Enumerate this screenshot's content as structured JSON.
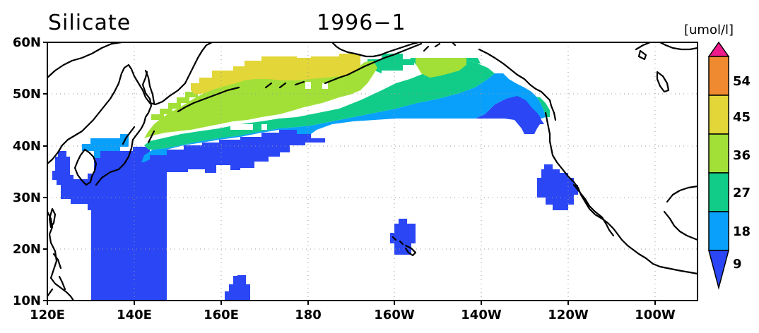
{
  "title": {
    "variable": "Silicate",
    "date": "1996−1"
  },
  "units": "[umol/l]",
  "axes": {
    "lon_labels": [
      "120E",
      "140E",
      "160E",
      "180",
      "160W",
      "140W",
      "120W",
      "100W"
    ],
    "lat_labels": [
      "10N",
      "20N",
      "30N",
      "40N",
      "50N",
      "60N"
    ],
    "lon_range": [
      120,
      270
    ],
    "lat_range": [
      10,
      60
    ],
    "grid": true
  },
  "colorbar": {
    "labels": [
      "9",
      "18",
      "27",
      "36",
      "45",
      "54"
    ],
    "levels": [
      9,
      18,
      27,
      36,
      45,
      54
    ],
    "colors": [
      "#2a46f5",
      "#08a0fa",
      "#10cc88",
      "#a2e038",
      "#e2d638",
      "#f08a30",
      "#ee1a8c"
    ],
    "extends": "both"
  },
  "chart_data": {
    "type": "heatmap",
    "title": "Silicate 1996−1",
    "units": "[umol/l]",
    "xlabel": "",
    "ylabel": "",
    "lon_range": [
      120,
      270
    ],
    "lat_range": [
      10,
      60
    ],
    "levels": [
      9,
      18,
      27,
      36,
      45,
      54
    ],
    "colors": [
      "#2a46f5",
      "#08a0fa",
      "#10cc88",
      "#a2e038",
      "#e2d638",
      "#f08a30",
      "#ee1a8c"
    ],
    "regions": [
      {
        "class": "<9",
        "color": "#2a46f5",
        "lon": [
          130,
          137
        ],
        "lat": [
          10,
          40
        ]
      },
      {
        "class": "<9",
        "color": "#2a46f5",
        "lon": [
          137,
          160
        ],
        "lat": [
          30,
          39
        ]
      },
      {
        "class": "<9",
        "color": "#2a46f5",
        "lon": [
          160,
          180
        ],
        "lat": [
          36,
          43
        ]
      },
      {
        "class": "<9",
        "color": "#2a46f5",
        "lon": [
          220,
          232
        ],
        "lat": [
          41,
          49
        ]
      },
      {
        "class": "<9",
        "color": "#2a46f5",
        "lon": [
          156,
          161
        ],
        "lat": [
          10,
          15
        ]
      },
      {
        "class": "<9",
        "color": "#2a46f5",
        "lon": [
          198,
          205
        ],
        "lat": [
          19,
          26
        ]
      },
      {
        "class": "<9",
        "color": "#2a46f5",
        "lon": [
          237,
          245
        ],
        "lat": [
          28,
          36
        ]
      },
      {
        "class": "9-18",
        "color": "#08a0fa",
        "lon": [
          137,
          225
        ],
        "lat": [
          38,
          48
        ]
      },
      {
        "class": "18-27",
        "color": "#10cc88",
        "lon": [
          145,
          235
        ],
        "lat": [
          42,
          55
        ]
      },
      {
        "class": "27-36",
        "color": "#a2e038",
        "lon": [
          142,
          215
        ],
        "lat": [
          41,
          56
        ]
      },
      {
        "class": "36-45",
        "color": "#e2d638",
        "lon": [
          150,
          190
        ],
        "lat": [
          47,
          57
        ]
      }
    ]
  }
}
